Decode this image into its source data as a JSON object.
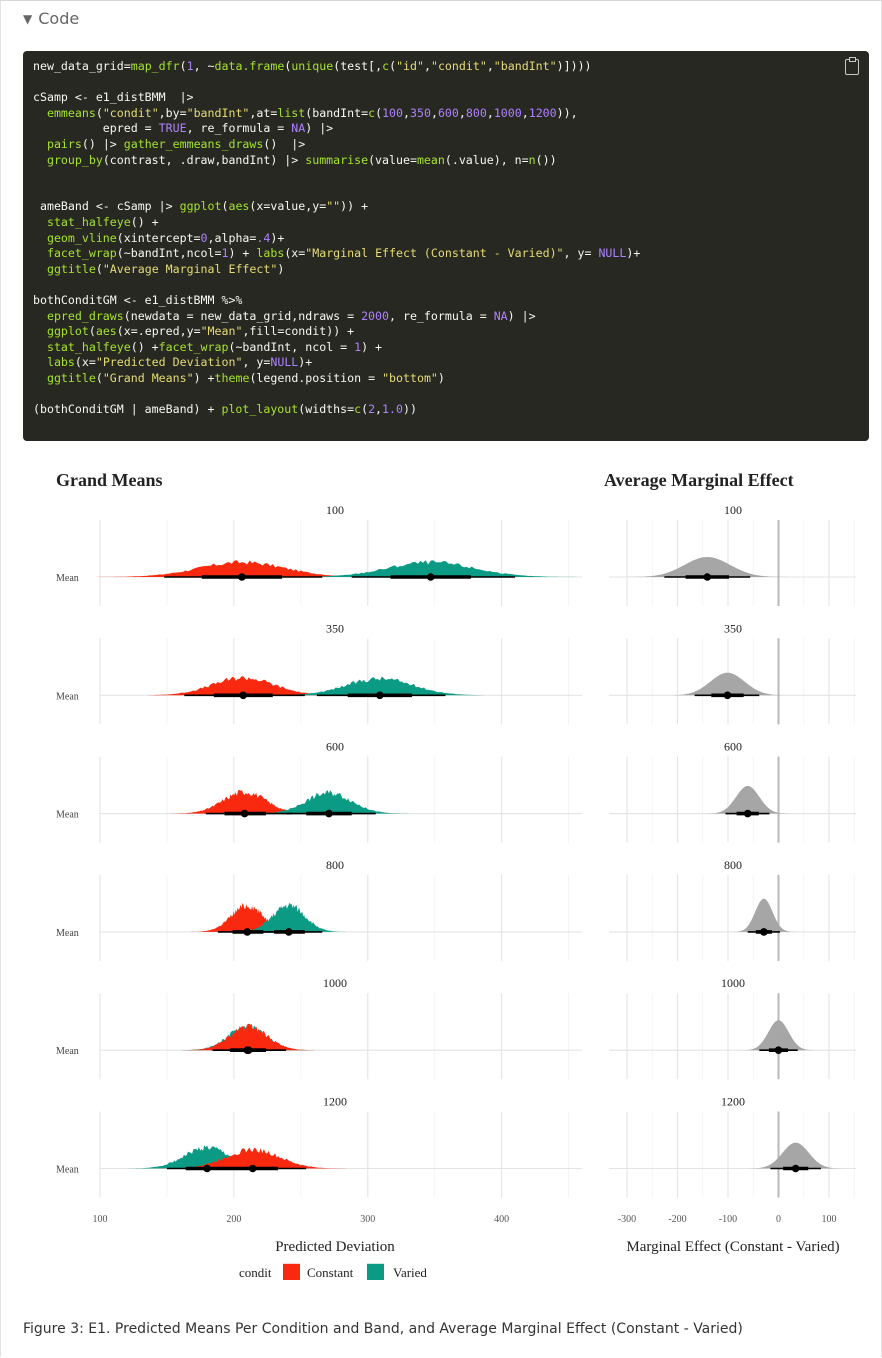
{
  "code_toggle": {
    "label": "Code"
  },
  "code_lines": [
    [
      [
        "new_data_grid=",
        ""
      ],
      [
        "map_dfr",
        "fn"
      ],
      [
        "(",
        ""
      ],
      [
        "1",
        "nm"
      ],
      [
        ", ~",
        ""
      ],
      [
        "data.frame",
        "fn"
      ],
      [
        "(",
        ""
      ],
      [
        "unique",
        "fn"
      ],
      [
        "(test[,",
        ""
      ],
      [
        "c",
        "fn"
      ],
      [
        "(",
        ""
      ],
      [
        "\"id\"",
        "st"
      ],
      [
        ",",
        ""
      ],
      [
        "\"condit\"",
        "st"
      ],
      [
        ",",
        ""
      ],
      [
        "\"bandInt\"",
        "st"
      ],
      [
        ")])))",
        ""
      ]
    ],
    [],
    [
      [
        "cSamp <- e1_distBMM  |>",
        ""
      ]
    ],
    [
      [
        "  ",
        ""
      ],
      [
        "emmeans",
        "fn"
      ],
      [
        "(",
        ""
      ],
      [
        "\"condit\"",
        "st"
      ],
      [
        ",by=",
        ""
      ],
      [
        "\"bandInt\"",
        "st"
      ],
      [
        ",at=",
        ""
      ],
      [
        "list",
        "fn"
      ],
      [
        "(bandInt=",
        ""
      ],
      [
        "c",
        "fn"
      ],
      [
        "(",
        ""
      ],
      [
        "100",
        "nm"
      ],
      [
        ",",
        ""
      ],
      [
        "350",
        "nm"
      ],
      [
        ",",
        ""
      ],
      [
        "600",
        "nm"
      ],
      [
        ",",
        ""
      ],
      [
        "800",
        "nm"
      ],
      [
        ",",
        ""
      ],
      [
        "1000",
        "nm"
      ],
      [
        ",",
        ""
      ],
      [
        "1200",
        "nm"
      ],
      [
        ")),",
        ""
      ]
    ],
    [
      [
        "          epred = ",
        ""
      ],
      [
        "TRUE",
        "nm"
      ],
      [
        ", re_formula = ",
        ""
      ],
      [
        "NA",
        "nm"
      ],
      [
        ") |>",
        ""
      ]
    ],
    [
      [
        "  ",
        ""
      ],
      [
        "pairs",
        "fn"
      ],
      [
        "() |> ",
        ""
      ],
      [
        "gather_emmeans_draws",
        "fn"
      ],
      [
        "()  |>",
        ""
      ]
    ],
    [
      [
        "  ",
        ""
      ],
      [
        "group_by",
        "fn"
      ],
      [
        "(contrast, .draw,bandInt) |> ",
        ""
      ],
      [
        "summarise",
        "fn"
      ],
      [
        "(value=",
        ""
      ],
      [
        "mean",
        "fn"
      ],
      [
        "(.value), n=",
        ""
      ],
      [
        "n",
        "fn"
      ],
      [
        "())",
        ""
      ]
    ],
    [],
    [],
    [
      [
        " ameBand <- cSamp |> ",
        ""
      ],
      [
        "ggplot",
        "fn"
      ],
      [
        "(",
        ""
      ],
      [
        "aes",
        "fn"
      ],
      [
        "(x=value,y=",
        ""
      ],
      [
        "\"\"",
        "st"
      ],
      [
        ")) +",
        ""
      ]
    ],
    [
      [
        "  ",
        ""
      ],
      [
        "stat_halfeye",
        "fn"
      ],
      [
        "() +",
        ""
      ]
    ],
    [
      [
        "  ",
        ""
      ],
      [
        "geom_vline",
        "fn"
      ],
      [
        "(xintercept=",
        ""
      ],
      [
        "0",
        "nm"
      ],
      [
        ",alpha=",
        ""
      ],
      [
        ".4",
        "nm"
      ],
      [
        ")+",
        ""
      ]
    ],
    [
      [
        "  ",
        ""
      ],
      [
        "facet_wrap",
        "fn"
      ],
      [
        "(~bandInt,ncol=",
        ""
      ],
      [
        "1",
        "nm"
      ],
      [
        ") + ",
        ""
      ],
      [
        "labs",
        "fn"
      ],
      [
        "(x=",
        ""
      ],
      [
        "\"Marginal Effect (Constant - Varied)\"",
        "st"
      ],
      [
        ", y= ",
        ""
      ],
      [
        "NULL",
        "nm"
      ],
      [
        ")+",
        ""
      ]
    ],
    [
      [
        "  ",
        ""
      ],
      [
        "ggtitle",
        "fn"
      ],
      [
        "(",
        ""
      ],
      [
        "\"Average Marginal Effect\"",
        "st"
      ],
      [
        ")",
        ""
      ]
    ],
    [],
    [
      [
        "bothConditGM <- e1_distBMM %>%",
        ""
      ]
    ],
    [
      [
        "  ",
        ""
      ],
      [
        "epred_draws",
        "fn"
      ],
      [
        "(newdata = new_data_grid,ndraws = ",
        ""
      ],
      [
        "2000",
        "nm"
      ],
      [
        ", re_formula = ",
        ""
      ],
      [
        "NA",
        "nm"
      ],
      [
        ") |>",
        ""
      ]
    ],
    [
      [
        "  ",
        ""
      ],
      [
        "ggplot",
        "fn"
      ],
      [
        "(",
        ""
      ],
      [
        "aes",
        "fn"
      ],
      [
        "(x=.epred,y=",
        ""
      ],
      [
        "\"Mean\"",
        "st"
      ],
      [
        ",fill=condit)) +",
        ""
      ]
    ],
    [
      [
        "  ",
        ""
      ],
      [
        "stat_halfeye",
        "fn"
      ],
      [
        "() +",
        ""
      ],
      [
        "facet_wrap",
        "fn"
      ],
      [
        "(~bandInt, ncol = ",
        ""
      ],
      [
        "1",
        "nm"
      ],
      [
        ") +",
        ""
      ]
    ],
    [
      [
        "  ",
        ""
      ],
      [
        "labs",
        "fn"
      ],
      [
        "(x=",
        ""
      ],
      [
        "\"Predicted Deviation\"",
        "st"
      ],
      [
        ", y=",
        ""
      ],
      [
        "NULL",
        "nm"
      ],
      [
        ")+",
        ""
      ]
    ],
    [
      [
        "  ",
        ""
      ],
      [
        "ggtitle",
        "fn"
      ],
      [
        "(",
        ""
      ],
      [
        "\"Grand Means\"",
        "st"
      ],
      [
        ") +",
        ""
      ],
      [
        "theme",
        "fn"
      ],
      [
        "(legend.position = ",
        ""
      ],
      [
        "\"bottom\"",
        "st"
      ],
      [
        ")",
        ""
      ]
    ],
    [],
    [
      [
        "(bothConditGM | ameBand) + ",
        ""
      ],
      [
        "plot_layout",
        "fn"
      ],
      [
        "(widths=",
        ""
      ],
      [
        "c",
        "fn"
      ],
      [
        "(",
        ""
      ],
      [
        "2",
        "nm"
      ],
      [
        ",",
        ""
      ],
      [
        "1.0",
        "nm"
      ],
      [
        "))",
        ""
      ]
    ]
  ],
  "figure": {
    "caption": "Figure 3: E1. Predicted Means Per Condition and Band, and Average Marginal Effect (Constant - Varied)",
    "colors": {
      "Constant": "#F8290E",
      "Varied": "#0B9B85",
      "marginal": "#A6A6A6"
    }
  },
  "chart_data": [
    {
      "type": "area",
      "title": "Grand Means",
      "xlabel": "Predicted Deviation",
      "ylabel": "",
      "y_tick": "Mean",
      "xlim": [
        100,
        460
      ],
      "x_ticks": [
        100,
        200,
        300,
        400
      ],
      "grid": true,
      "legend": {
        "title": "condit",
        "position": "bottom",
        "entries": [
          "Constant",
          "Varied"
        ]
      },
      "facets": [
        {
          "label": "100",
          "series": [
            {
              "name": "Constant",
              "median": 206,
              "sd": 32,
              "interval66": [
                176,
                236
              ],
              "interval95": [
                148,
                266
              ]
            },
            {
              "name": "Varied",
              "median": 347,
              "sd": 32,
              "interval66": [
                317,
                377
              ],
              "interval95": [
                288,
                410
              ]
            }
          ]
        },
        {
          "label": "350",
          "series": [
            {
              "name": "Constant",
              "median": 207,
              "sd": 23,
              "interval66": [
                185,
                229
              ],
              "interval95": [
                163,
                253
              ]
            },
            {
              "name": "Varied",
              "median": 309,
              "sd": 25,
              "interval66": [
                285,
                333
              ],
              "interval95": [
                262,
                358
              ]
            }
          ]
        },
        {
          "label": "600",
          "series": [
            {
              "name": "Constant",
              "median": 208,
              "sd": 16,
              "interval66": [
                193,
                224
              ],
              "interval95": [
                179,
                244
              ]
            },
            {
              "name": "Varied",
              "median": 271,
              "sd": 17,
              "interval66": [
                254,
                288
              ],
              "interval95": [
                239,
                306
              ]
            }
          ]
        },
        {
          "label": "800",
          "series": [
            {
              "name": "Constant",
              "median": 210,
              "sd": 12,
              "interval66": [
                199,
                222
              ],
              "interval95": [
                188,
                236
              ]
            },
            {
              "name": "Varied",
              "median": 241,
              "sd": 12,
              "interval66": [
                230,
                253
              ],
              "interval95": [
                219,
                266
              ]
            }
          ]
        },
        {
          "label": "1000",
          "series": [
            {
              "name": "Varied",
              "median": 210,
              "sd": 14,
              "interval66": [
                197,
                223
              ],
              "interval95": [
                184,
                238
              ]
            },
            {
              "name": "Constant",
              "median": 211,
              "sd": 14,
              "interval66": [
                198,
                224
              ],
              "interval95": [
                185,
                239
              ]
            }
          ]
        },
        {
          "label": "1200",
          "series": [
            {
              "name": "Varied",
              "median": 180,
              "sd": 17,
              "interval66": [
                164,
                196
              ],
              "interval95": [
                150,
                212
              ]
            },
            {
              "name": "Constant",
              "median": 214,
              "sd": 20,
              "interval66": [
                196,
                233
              ],
              "interval95": [
                178,
                254
              ]
            }
          ]
        }
      ]
    },
    {
      "type": "area",
      "title": "Average Marginal Effect",
      "xlabel": "Marginal Effect (Constant - Varied)",
      "ylabel": "",
      "xlim": [
        -320,
        150
      ],
      "x_ticks": [
        -300,
        -200,
        -100,
        0,
        100
      ],
      "vline": 0,
      "grid": true,
      "facets": [
        {
          "label": "100",
          "median": -141,
          "sd": 45,
          "interval66": [
            -184,
            -98
          ],
          "interval95": [
            -226,
            -56
          ]
        },
        {
          "label": "350",
          "median": -101,
          "sd": 34,
          "interval66": [
            -133,
            -69
          ],
          "interval95": [
            -166,
            -38
          ]
        },
        {
          "label": "600",
          "median": -61,
          "sd": 23,
          "interval66": [
            -83,
            -39
          ],
          "interval95": [
            -105,
            -18
          ]
        },
        {
          "label": "800",
          "median": -29,
          "sd": 17,
          "interval66": [
            -45,
            -13
          ],
          "interval95": [
            -61,
            3
          ]
        },
        {
          "label": "1000",
          "median": 0,
          "sd": 20,
          "interval66": [
            -19,
            19
          ],
          "interval95": [
            -38,
            38
          ]
        },
        {
          "label": "1200",
          "median": 34,
          "sd": 26,
          "interval66": [
            9,
            59
          ],
          "interval95": [
            -16,
            84
          ]
        }
      ]
    }
  ]
}
